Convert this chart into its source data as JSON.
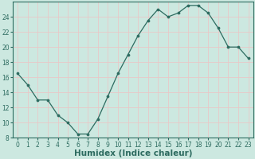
{
  "x": [
    0,
    1,
    2,
    3,
    4,
    5,
    6,
    7,
    8,
    9,
    10,
    11,
    12,
    13,
    14,
    15,
    16,
    17,
    18,
    19,
    20,
    21,
    22,
    23
  ],
  "y": [
    16.5,
    15.0,
    13.0,
    13.0,
    11.0,
    10.0,
    8.5,
    8.5,
    10.5,
    13.5,
    16.5,
    19.0,
    21.5,
    23.5,
    25.0,
    24.0,
    24.5,
    25.5,
    25.5,
    24.5,
    22.5,
    20.0,
    20.0,
    18.5
  ],
  "line_color": "#2d6b60",
  "marker": "o",
  "marker_size": 2.2,
  "bg_color": "#cce8e0",
  "grid_color": "#e8c8c8",
  "xlabel": "Humidex (Indice chaleur)",
  "ylim": [
    8,
    26
  ],
  "xlim": [
    -0.5,
    23.5
  ],
  "yticks": [
    8,
    10,
    12,
    14,
    16,
    18,
    20,
    22,
    24
  ],
  "xticks": [
    0,
    1,
    2,
    3,
    4,
    5,
    6,
    7,
    8,
    9,
    10,
    11,
    12,
    13,
    14,
    15,
    16,
    17,
    18,
    19,
    20,
    21,
    22,
    23
  ],
  "tick_fontsize": 5.5,
  "xlabel_fontsize": 7.5,
  "xlabel_bold": true,
  "tick_color": "#2d6b60",
  "label_color": "#2d6b60"
}
